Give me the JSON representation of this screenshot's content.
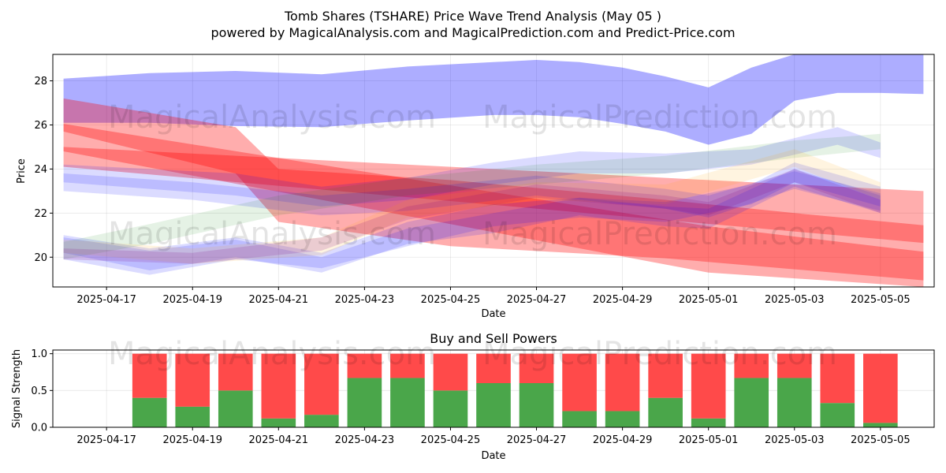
{
  "figure": {
    "title": "Tomb Shares (TSHARE) Price Wave Trend Analysis (May 05 )",
    "subtitle": "powered by MagicalAnalysis.com and MagicalPrediction.com and Predict-Price.com",
    "watermarks": [
      "MagicalAnalysis.com",
      "MagicalPrediction.com"
    ]
  },
  "chart_data": [
    {
      "type": "area",
      "title": "",
      "xlabel": "Date",
      "ylabel": "Price",
      "x_ticks": [
        "2025-04-17",
        "2025-04-19",
        "2025-04-21",
        "2025-04-23",
        "2025-04-25",
        "2025-04-27",
        "2025-04-29",
        "2025-05-01",
        "2025-05-03",
        "2025-05-05"
      ],
      "y_ticks": [
        20,
        22,
        24,
        26,
        28
      ],
      "xlim": [
        "2025-04-15T18:00",
        "2025-05-06T06:00"
      ],
      "ylim": [
        18.65,
        29.2
      ],
      "grid": true,
      "series": [
        {
          "color": "#0000ff",
          "alpha": 0.32,
          "x": [
            "2025-04-16",
            "2025-04-18",
            "2025-04-20",
            "2025-04-22",
            "2025-04-24",
            "2025-04-26",
            "2025-04-27",
            "2025-04-28",
            "2025-04-29",
            "2025-04-30",
            "2025-05-01",
            "2025-05-02",
            "2025-05-03",
            "2025-05-04",
            "2025-05-05",
            "2025-05-06"
          ],
          "upper": [
            28.1,
            28.35,
            28.45,
            28.3,
            28.65,
            28.85,
            28.95,
            28.85,
            28.6,
            28.2,
            27.7,
            28.6,
            29.2,
            29.25,
            29.25,
            29.25
          ],
          "lower": [
            26.1,
            26.1,
            25.95,
            25.9,
            26.2,
            26.45,
            26.45,
            26.35,
            26.05,
            25.7,
            25.1,
            25.6,
            27.1,
            27.45,
            27.45,
            27.4
          ]
        },
        {
          "color": "#ff0000",
          "alpha": 0.32,
          "x": [
            "2025-04-16",
            "2025-04-20",
            "2025-04-21",
            "2025-04-25",
            "2025-04-30",
            "2025-05-03",
            "2025-05-06"
          ],
          "upper": [
            27.2,
            25.9,
            24.0,
            23.5,
            22.6,
            22.0,
            21.45
          ],
          "lower": [
            25.7,
            23.8,
            21.6,
            20.5,
            19.95,
            19.45,
            18.95
          ]
        },
        {
          "color": "#ff0000",
          "alpha": 0.32,
          "x": [
            "2025-04-16",
            "2025-05-01",
            "2025-05-06"
          ],
          "upper": [
            26.05,
            21.4,
            20.25
          ],
          "lower": [
            24.8,
            19.3,
            18.65
          ]
        },
        {
          "color": "#ff0000",
          "alpha": 0.32,
          "x": [
            "2025-04-16",
            "2025-05-06"
          ],
          "upper": [
            25.0,
            23.0
          ],
          "lower": [
            24.1,
            20.65
          ]
        },
        {
          "color": "#0000ff",
          "alpha": 0.14,
          "x": [
            "2025-04-16",
            "2025-04-20",
            "2025-04-22",
            "2025-04-24",
            "2025-04-26",
            "2025-04-28",
            "2025-04-30",
            "2025-05-02",
            "2025-05-04",
            "2025-05-05"
          ],
          "upper": [
            24.2,
            23.8,
            23.2,
            23.6,
            24.3,
            24.8,
            24.7,
            24.9,
            25.9,
            25.2
          ],
          "lower": [
            23.4,
            22.8,
            22.3,
            22.6,
            23.3,
            23.8,
            23.8,
            24.2,
            25.1,
            24.5
          ]
        },
        {
          "color": "#0000ff",
          "alpha": 0.14,
          "x": [
            "2025-04-16",
            "2025-04-19",
            "2025-04-22",
            "2025-04-24",
            "2025-04-27",
            "2025-04-30",
            "2025-05-01",
            "2025-05-03",
            "2025-05-05"
          ],
          "upper": [
            23.8,
            23.4,
            22.8,
            23.1,
            23.7,
            23.1,
            22.8,
            23.9,
            22.9
          ],
          "lower": [
            23.0,
            22.6,
            21.9,
            22.1,
            22.8,
            22.2,
            21.8,
            23.1,
            22.1
          ]
        },
        {
          "color": "#0000ff",
          "alpha": 0.14,
          "x": [
            "2025-04-16",
            "2025-04-18",
            "2025-04-20",
            "2025-04-22",
            "2025-04-24",
            "2025-04-26",
            "2025-04-28",
            "2025-04-30",
            "2025-05-02",
            "2025-05-03",
            "2025-05-05"
          ],
          "upper": [
            21.0,
            20.4,
            20.9,
            20.2,
            21.6,
            22.4,
            22.7,
            22.5,
            23.3,
            24.3,
            23.2
          ],
          "lower": [
            19.9,
            19.2,
            19.9,
            19.5,
            20.5,
            21.4,
            21.8,
            21.6,
            22.4,
            23.4,
            22.3
          ]
        },
        {
          "color": "#0000ff",
          "alpha": 0.14,
          "x": [
            "2025-04-16",
            "2025-04-18",
            "2025-04-20",
            "2025-04-22",
            "2025-04-24",
            "2025-04-26",
            "2025-04-28",
            "2025-04-30",
            "2025-05-01",
            "2025-05-03",
            "2025-05-05"
          ],
          "upper": [
            20.9,
            20.3,
            20.8,
            20.0,
            21.3,
            22.0,
            22.7,
            22.3,
            22.2,
            24.0,
            22.8
          ],
          "lower": [
            20.2,
            19.4,
            20.0,
            19.3,
            20.6,
            21.1,
            21.9,
            21.4,
            21.3,
            23.2,
            22.0
          ]
        },
        {
          "color": "#008000",
          "alpha": 0.1,
          "x": [
            "2025-04-16",
            "2025-04-18",
            "2025-04-21",
            "2025-04-24",
            "2025-04-27",
            "2025-04-30",
            "2025-05-03",
            "2025-05-05"
          ],
          "upper": [
            20.7,
            21.5,
            22.8,
            23.6,
            24.2,
            24.6,
            25.3,
            25.6
          ],
          "lower": [
            19.9,
            20.6,
            21.9,
            22.8,
            23.3,
            23.8,
            24.5,
            24.9
          ]
        },
        {
          "color": "#ffa500",
          "alpha": 0.12,
          "x": [
            "2025-04-16",
            "2025-04-19",
            "2025-04-22",
            "2025-04-24",
            "2025-04-27",
            "2025-04-30",
            "2025-05-03",
            "2025-05-05"
          ],
          "upper": [
            20.8,
            20.4,
            20.9,
            22.6,
            23.4,
            23.3,
            24.9,
            23.4
          ],
          "lower": [
            20.2,
            19.7,
            20.1,
            21.8,
            22.6,
            22.4,
            24.1,
            22.6
          ]
        },
        {
          "color": "#800080",
          "alpha": 0.16,
          "x": [
            "2025-04-16",
            "2025-04-19",
            "2025-04-22",
            "2025-04-24",
            "2025-04-27",
            "2025-04-30",
            "2025-05-01",
            "2025-05-03",
            "2025-05-05"
          ],
          "upper": [
            20.4,
            20.2,
            20.9,
            22.3,
            23.3,
            22.8,
            22.5,
            24.0,
            22.6
          ],
          "lower": [
            19.9,
            19.7,
            20.3,
            21.7,
            22.7,
            22.2,
            21.9,
            23.4,
            22.0
          ]
        }
      ]
    },
    {
      "type": "bar",
      "title": "Buy and Sell Powers",
      "xlabel": "Date",
      "ylabel": "Signal Strength",
      "x_ticks": [
        "2025-04-17",
        "2025-04-19",
        "2025-04-21",
        "2025-04-23",
        "2025-04-25",
        "2025-04-27",
        "2025-04-29",
        "2025-05-01",
        "2025-05-03",
        "2025-05-05"
      ],
      "y_ticks": [
        "0.0",
        "0.5",
        "1.0"
      ],
      "ylim": [
        0,
        1.05
      ],
      "grid": true,
      "categories": [
        "2025-04-18",
        "2025-04-19",
        "2025-04-20",
        "2025-04-21",
        "2025-04-22",
        "2025-04-23",
        "2025-04-24",
        "2025-04-25",
        "2025-04-26",
        "2025-04-27",
        "2025-04-28",
        "2025-04-29",
        "2025-04-30",
        "2025-05-01",
        "2025-05-02",
        "2025-05-03",
        "2025-05-04",
        "2025-05-05"
      ],
      "series": [
        {
          "color": "#4aa64a",
          "values": [
            0.4,
            0.28,
            0.5,
            0.12,
            0.17,
            0.67,
            0.67,
            0.5,
            0.6,
            0.6,
            0.22,
            0.22,
            0.4,
            0.12,
            0.67,
            0.67,
            0.33,
            0.06
          ]
        },
        {
          "color": "#ff4a4a",
          "values": [
            0.6,
            0.72,
            0.5,
            0.88,
            0.83,
            0.33,
            0.33,
            0.5,
            0.4,
            0.4,
            0.78,
            0.78,
            0.6,
            0.88,
            0.33,
            0.33,
            0.67,
            0.94
          ]
        }
      ]
    }
  ]
}
